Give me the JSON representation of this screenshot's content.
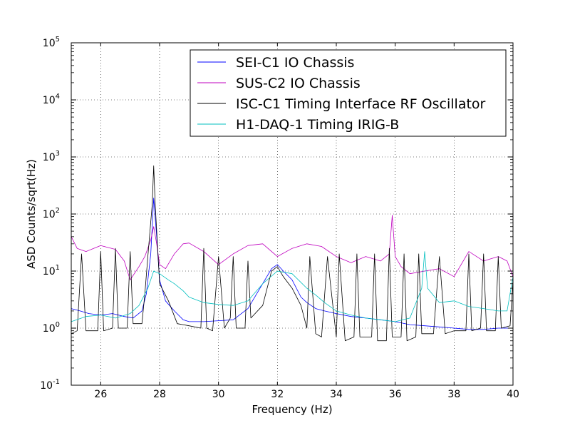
{
  "chart_data": {
    "type": "line",
    "title": "",
    "xlabel": "Frequency (Hz)",
    "ylabel": "ASD Counts/sqrt(Hz)",
    "xlim": [
      25,
      40
    ],
    "ylim": [
      0.1,
      100000
    ],
    "yscale": "log",
    "grid": true,
    "legend_position": "top-right",
    "x_ticks": [
      26,
      28,
      30,
      32,
      34,
      36,
      38,
      40
    ],
    "x_tick_labels": [
      "26",
      "28",
      "30",
      "32",
      "34",
      "36",
      "38",
      "40"
    ],
    "y_ticks": [
      {
        "value": 0.1,
        "base": "10",
        "exp": "-1"
      },
      {
        "value": 1,
        "base": "10",
        "exp": "0"
      },
      {
        "value": 10,
        "base": "10",
        "exp": "1"
      },
      {
        "value": 100,
        "base": "10",
        "exp": "2"
      },
      {
        "value": 1000,
        "base": "10",
        "exp": "3"
      },
      {
        "value": 10000,
        "base": "10",
        "exp": "4"
      },
      {
        "value": 100000,
        "base": "10",
        "exp": "5"
      }
    ],
    "series": [
      {
        "name": "SEI-C1 IO Chassis",
        "color": "#0000ff",
        "x": [
          25.0,
          25.3,
          25.6,
          26.0,
          26.4,
          26.8,
          27.1,
          27.4,
          27.55,
          27.7,
          27.8,
          27.9,
          28.0,
          28.2,
          28.5,
          28.8,
          29.0,
          29.5,
          30.0,
          30.5,
          31.0,
          31.5,
          31.8,
          32.0,
          32.2,
          32.5,
          32.8,
          33.0,
          33.3,
          33.6,
          34.0,
          34.5,
          35.0,
          35.5,
          36.0,
          36.5,
          37.0,
          37.5,
          38.0,
          38.5,
          39.0,
          39.5,
          40.0
        ],
        "y": [
          2.2,
          2.0,
          1.8,
          1.7,
          1.8,
          1.6,
          1.5,
          2.0,
          4.0,
          20,
          190,
          40,
          7,
          3,
          2.0,
          1.4,
          1.3,
          1.3,
          1.35,
          1.4,
          2.2,
          6,
          11,
          13,
          10,
          7,
          3.5,
          2.8,
          2.2,
          2.0,
          1.8,
          1.6,
          1.5,
          1.4,
          1.3,
          1.15,
          1.1,
          1.05,
          1.0,
          0.95,
          0.95,
          1.0,
          1.0
        ]
      },
      {
        "name": "SUS-C2 IO Chassis",
        "color": "#bf00bf",
        "x": [
          25.0,
          25.2,
          25.5,
          26.0,
          26.5,
          26.8,
          27.0,
          27.3,
          27.5,
          27.7,
          27.8,
          27.9,
          28.0,
          28.2,
          28.5,
          28.8,
          29.0,
          29.5,
          30.0,
          30.5,
          31.0,
          31.5,
          32.0,
          32.5,
          33.0,
          33.5,
          34.0,
          34.5,
          35.0,
          35.5,
          35.8,
          35.9,
          36.0,
          36.2,
          36.5,
          37.0,
          37.5,
          38.0,
          38.5,
          39.0,
          39.5,
          39.8,
          40.0
        ],
        "y": [
          40,
          25,
          22,
          28,
          24,
          15,
          7,
          12,
          18,
          35,
          60,
          30,
          13,
          11,
          20,
          30,
          31,
          22,
          13,
          20,
          28,
          30,
          18,
          25,
          30,
          27,
          18,
          14,
          18,
          15,
          20,
          95,
          18,
          12,
          9,
          10,
          11,
          8,
          22,
          15,
          18,
          15,
          8
        ]
      },
      {
        "name": "ISC-C1 Timing Interface RF Oscillator",
        "color": "#000000",
        "x": [
          25.0,
          25.2,
          25.35,
          25.5,
          25.9,
          26.0,
          26.1,
          26.4,
          26.5,
          26.6,
          26.9,
          27.0,
          27.1,
          27.4,
          27.5,
          27.6,
          27.75,
          27.8,
          27.85,
          28.0,
          28.3,
          28.6,
          29.0,
          29.4,
          29.5,
          29.6,
          29.8,
          30.0,
          30.2,
          30.4,
          30.5,
          30.6,
          30.9,
          31.0,
          31.1,
          31.5,
          31.8,
          32.0,
          32.2,
          32.5,
          32.8,
          33.0,
          33.1,
          33.3,
          33.5,
          33.7,
          34.0,
          34.1,
          34.3,
          34.6,
          34.7,
          34.8,
          35.0,
          35.2,
          35.3,
          35.4,
          35.7,
          35.8,
          35.9,
          36.2,
          36.3,
          36.4,
          36.7,
          36.8,
          36.9,
          37.3,
          37.5,
          37.7,
          38.0,
          38.2,
          38.4,
          38.5,
          38.6,
          38.9,
          39.0,
          39.1,
          39.4,
          39.5,
          39.6,
          39.9,
          40.0
        ],
        "y": [
          0.8,
          0.9,
          20,
          0.9,
          0.9,
          22,
          0.9,
          1.0,
          25,
          1.0,
          1.0,
          22,
          1.2,
          1.2,
          4,
          18,
          150,
          700,
          150,
          6,
          3,
          1.2,
          1.1,
          1.0,
          25,
          1.0,
          0.9,
          18,
          1.0,
          1.5,
          18,
          1.0,
          1.0,
          15,
          1.5,
          2.5,
          10,
          12,
          8,
          5,
          2.5,
          1.0,
          18,
          0.8,
          0.7,
          18,
          0.7,
          20,
          0.6,
          0.7,
          20,
          0.7,
          0.7,
          0.7,
          20,
          0.6,
          0.6,
          25,
          0.7,
          0.7,
          20,
          0.6,
          0.7,
          20,
          0.8,
          0.8,
          18,
          0.8,
          0.9,
          0.9,
          0.9,
          20,
          0.9,
          1.0,
          20,
          0.9,
          0.9,
          18,
          1.0,
          1.1,
          7
        ]
      },
      {
        "name": "H1-DAQ-1 Timing IRIG-B",
        "color": "#00bfbf",
        "x": [
          25.0,
          25.5,
          26.0,
          26.5,
          27.0,
          27.3,
          27.6,
          27.8,
          28.0,
          28.3,
          28.5,
          28.8,
          29.0,
          29.5,
          30.0,
          30.5,
          31.0,
          31.5,
          32.0,
          32.5,
          33.0,
          33.3,
          33.6,
          34.0,
          34.5,
          35.0,
          35.5,
          36.0,
          36.5,
          36.9,
          37.0,
          37.1,
          37.5,
          38.0,
          38.5,
          39.0,
          39.5,
          39.8,
          40.0
        ],
        "y": [
          1.3,
          1.6,
          1.7,
          1.5,
          1.8,
          2.5,
          5,
          10,
          9,
          7,
          6,
          4.5,
          3.5,
          2.8,
          2.6,
          2.5,
          3,
          6,
          10,
          9,
          5,
          3.8,
          2.8,
          2.0,
          1.7,
          1.5,
          1.4,
          1.3,
          1.5,
          5,
          22,
          5,
          2.8,
          3,
          2.4,
          2.2,
          2.0,
          2.0,
          8
        ]
      }
    ]
  }
}
